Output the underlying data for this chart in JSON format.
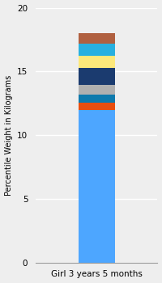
{
  "category": "Girl 3 years 5 months",
  "ylabel": "Percentile Weight in Kilograms",
  "ylim": [
    0,
    20
  ],
  "yticks": [
    0,
    5,
    10,
    15,
    20
  ],
  "segments": [
    {
      "value": 12.0,
      "color": "#4da6ff"
    },
    {
      "value": 0.55,
      "color": "#e84e0f"
    },
    {
      "value": 0.65,
      "color": "#0e7aad"
    },
    {
      "value": 0.75,
      "color": "#b0b0b0"
    },
    {
      "value": 1.3,
      "color": "#1b3b6f"
    },
    {
      "value": 1.0,
      "color": "#fde87a"
    },
    {
      "value": 0.9,
      "color": "#28b0e0"
    },
    {
      "value": 0.85,
      "color": "#b06040"
    }
  ],
  "background_color": "#eeeeee",
  "axes_bg_color": "#eeeeee",
  "bar_width": 0.3,
  "ylabel_fontsize": 7.0,
  "tick_fontsize": 7.5,
  "xlim": [
    -0.5,
    0.5
  ]
}
